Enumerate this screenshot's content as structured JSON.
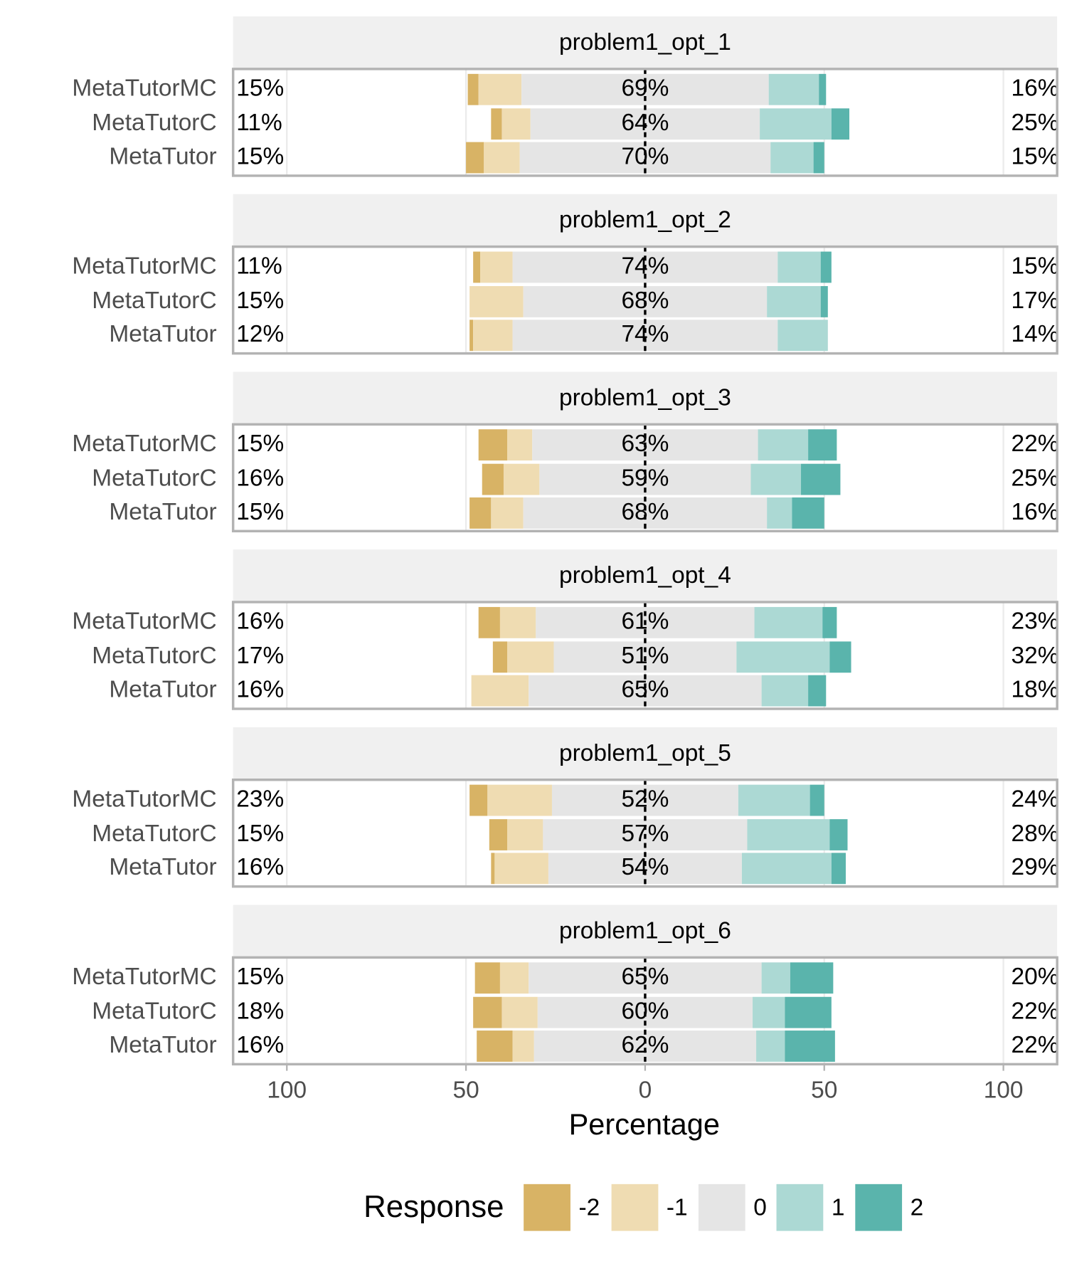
{
  "chart_data": {
    "type": "diverging-bar",
    "xlabel": "Percentage",
    "legend_title": "Response",
    "xlim": [
      -115,
      115
    ],
    "xticks": [
      {
        "value": -100,
        "label": "100"
      },
      {
        "value": -50,
        "label": "50"
      },
      0,
      50,
      100
    ],
    "categories": [
      "MetaTutorMC",
      "MetaTutorC",
      "MetaTutor"
    ],
    "series": [
      {
        "name": "-2",
        "color": "#d8b365"
      },
      {
        "name": "-1",
        "color": "#efdcb2"
      },
      {
        "name": "0",
        "color": "#e5e5e5"
      },
      {
        "name": "1",
        "color": "#acd9d4"
      },
      {
        "name": "2",
        "color": "#5ab4ac"
      }
    ],
    "facets": [
      {
        "title": "problem1_opt_1",
        "values": [
          [
            3,
            3,
            5
          ],
          [
            12,
            8,
            10
          ],
          [
            69,
            64,
            70
          ],
          [
            14,
            20,
            12
          ],
          [
            2,
            5,
            3
          ]
        ],
        "low_labels": [
          "15%",
          "11%",
          "15%"
        ],
        "neutral_labels": [
          "69%",
          "64%",
          "70%"
        ],
        "high_labels": [
          "16%",
          "25%",
          "15%"
        ]
      },
      {
        "title": "problem1_opt_2",
        "values": [
          [
            2,
            0,
            1
          ],
          [
            9,
            15,
            11
          ],
          [
            74,
            68,
            74
          ],
          [
            12,
            15,
            14
          ],
          [
            3,
            2,
            0
          ]
        ],
        "low_labels": [
          "11%",
          "15%",
          "12%"
        ],
        "neutral_labels": [
          "74%",
          "68%",
          "74%"
        ],
        "high_labels": [
          "15%",
          "17%",
          "14%"
        ]
      },
      {
        "title": "problem1_opt_3",
        "values": [
          [
            8,
            6,
            6
          ],
          [
            7,
            10,
            9
          ],
          [
            63,
            59,
            68
          ],
          [
            14,
            14,
            7
          ],
          [
            8,
            11,
            9
          ]
        ],
        "low_labels": [
          "15%",
          "16%",
          "15%"
        ],
        "neutral_labels": [
          "63%",
          "59%",
          "68%"
        ],
        "high_labels": [
          "22%",
          "25%",
          "16%"
        ]
      },
      {
        "title": "problem1_opt_4",
        "values": [
          [
            6,
            4,
            0
          ],
          [
            10,
            13,
            16
          ],
          [
            61,
            51,
            65
          ],
          [
            19,
            26,
            13
          ],
          [
            4,
            6,
            5
          ]
        ],
        "low_labels": [
          "16%",
          "17%",
          "16%"
        ],
        "neutral_labels": [
          "61%",
          "51%",
          "65%"
        ],
        "high_labels": [
          "23%",
          "32%",
          "18%"
        ]
      },
      {
        "title": "problem1_opt_5",
        "values": [
          [
            5,
            5,
            1
          ],
          [
            18,
            10,
            15
          ],
          [
            52,
            57,
            54
          ],
          [
            20,
            23,
            25
          ],
          [
            4,
            5,
            4
          ]
        ],
        "low_labels": [
          "23%",
          "15%",
          "16%"
        ],
        "neutral_labels": [
          "52%",
          "57%",
          "54%"
        ],
        "high_labels": [
          "24%",
          "28%",
          "29%"
        ]
      },
      {
        "title": "problem1_opt_6",
        "values": [
          [
            7,
            8,
            10
          ],
          [
            8,
            10,
            6
          ],
          [
            65,
            60,
            62
          ],
          [
            8,
            9,
            8
          ],
          [
            12,
            13,
            14
          ]
        ],
        "low_labels": [
          "15%",
          "18%",
          "16%"
        ],
        "neutral_labels": [
          "65%",
          "60%",
          "62%"
        ],
        "high_labels": [
          "20%",
          "22%",
          "22%"
        ]
      }
    ]
  }
}
